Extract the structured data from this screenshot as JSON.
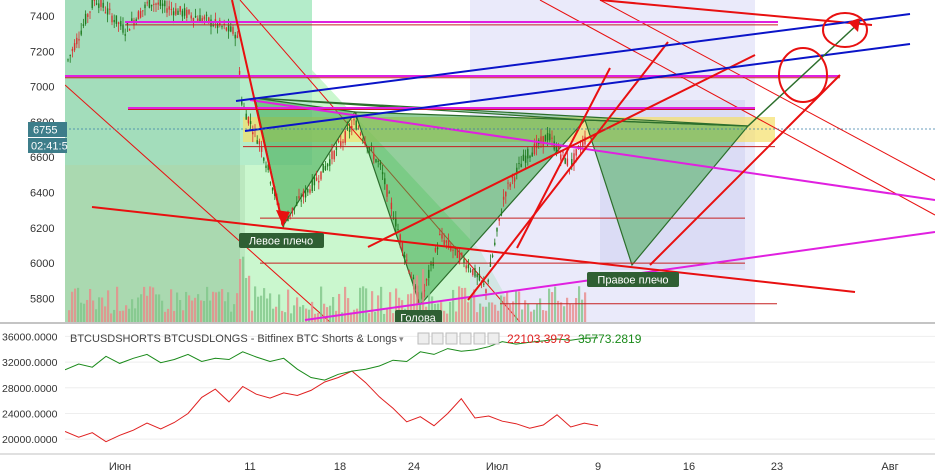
{
  "chart_data": [
    {
      "type": "candlestick",
      "symbol_note": "",
      "y_ticks": [
        "7400",
        "7200",
        "7000",
        "6800",
        "6600",
        "6400",
        "6200",
        "6000",
        "5800"
      ],
      "ylim": [
        5650,
        7500
      ],
      "x_ticks": [
        "Июн",
        "11",
        "18",
        "24",
        "Июл",
        "9",
        "16",
        "23",
        "Авг"
      ],
      "price_badge": {
        "price": "6755",
        "timer": "02:41:5"
      },
      "horizontal_levels": [
        7350,
        7050,
        6870,
        6660,
        6255,
        6000,
        5770
      ],
      "annotations": [
        "Левое плечо",
        "Голова",
        "Правое плечо"
      ],
      "candles_summary": {
        "start": 7150,
        "may_peak": 7500,
        "late_may_low": 7050,
        "early_june": 7420,
        "jun10": 7300,
        "jun13": 6230,
        "jun19": 6800,
        "jun24": 5760,
        "jun29": 5850,
        "jul6": 6720,
        "jul9": 6700
      }
    },
    {
      "type": "line",
      "title": "BTCUSDSHORTS BTCUSDLONGS - Bitfinex BTC Shorts & Longs",
      "y_ticks": [
        "36000.0000",
        "32000.0000",
        "28000.0000",
        "24000.0000",
        "20000.0000"
      ],
      "ylim": [
        18000,
        37000
      ],
      "series": [
        {
          "name": "BTCUSDSHORTS",
          "color": "#e02020",
          "last_value": "22103.3973",
          "values": [
            21200,
            20300,
            21000,
            19600,
            20600,
            21400,
            22500,
            21600,
            22600,
            24000,
            26500,
            27800,
            25800,
            28200,
            27000,
            26400,
            27200,
            26800,
            27600,
            28900,
            29600,
            30600,
            28800,
            26600,
            24800,
            22700,
            23500,
            22100,
            24000,
            26300,
            23300,
            23600,
            22800,
            22400,
            21700,
            22200,
            23800,
            21900,
            22500,
            22100
          ]
        },
        {
          "name": "BTCUSDLONGS",
          "color": "#1a8a1a",
          "last_value": "35773.2819",
          "values": [
            30800,
            31700,
            31200,
            32900,
            31800,
            32600,
            33200,
            31900,
            32400,
            33200,
            32100,
            32600,
            32400,
            33600,
            32800,
            32100,
            32600,
            30900,
            29600,
            29200,
            30100,
            30600,
            30900,
            31400,
            32300,
            32100,
            33600,
            33200,
            34100,
            33700,
            33900,
            34400,
            35200,
            34800,
            35100,
            35300,
            35600,
            35400,
            35700,
            35800
          ]
        }
      ]
    }
  ],
  "ui": {
    "indicator_title": "BTCUSDSHORTS BTCUSDLONGS - Bitfinex BTC Shorts & Longs",
    "shorts_value": "22103.3973",
    "longs_value": "35773.2819"
  },
  "colors": {
    "bull": "#1f7a1f",
    "bear": "#e03030",
    "trend_red": "#e81010",
    "trend_blue": "#0a14c8",
    "magenta": "#e020e0",
    "green_fill": "#3aa84a",
    "label_bg": "#2f5f33"
  }
}
